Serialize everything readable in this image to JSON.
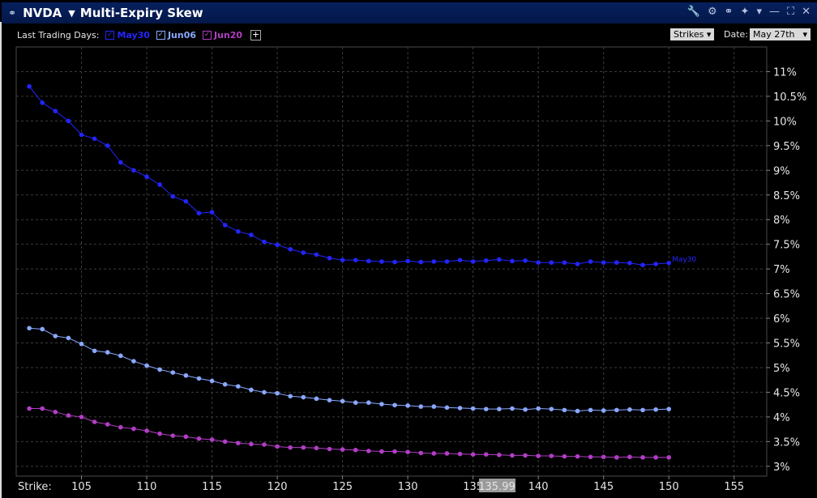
{
  "header": {
    "symbol": "NVDA",
    "title": "Multi-Expiry Skew"
  },
  "toolbar": {
    "last_days_label": "Last Trading Days:",
    "expiries": [
      {
        "label": "May30",
        "color": "#2424ff"
      },
      {
        "label": "Jun06",
        "color": "#8aa8ff"
      },
      {
        "label": "Jun20",
        "color": "#b13ec4"
      }
    ],
    "strikes_label": "Strikes",
    "date_label": "Date:",
    "date_value": "May 27th"
  },
  "chart_data": {
    "type": "line",
    "xlabel": "Strike:",
    "xlim": [
      100,
      157.5
    ],
    "ylim": [
      2.8,
      11.5
    ],
    "x_ticks": [
      105,
      110,
      115,
      120,
      125,
      130,
      135,
      140,
      145,
      150,
      155
    ],
    "y_ticks": [
      3,
      3.5,
      4,
      4.5,
      5,
      5.5,
      6,
      6.5,
      7,
      7.5,
      8,
      8.5,
      9,
      9.5,
      10,
      10.5,
      11
    ],
    "y_tick_format": "%",
    "grid": true,
    "current_price": "135.99",
    "x": [
      101,
      102,
      103,
      104,
      105,
      106,
      107,
      108,
      109,
      110,
      111,
      112,
      113,
      114,
      115,
      116,
      117,
      118,
      119,
      120,
      121,
      122,
      123,
      124,
      125,
      126,
      127,
      128,
      129,
      130,
      131,
      132,
      133,
      134,
      135,
      136,
      137,
      138,
      139,
      140,
      141,
      142,
      143,
      144,
      145,
      146,
      147,
      148,
      149,
      150
    ],
    "series": [
      {
        "name": "May30",
        "color": "#2424ff",
        "end_label": "May30",
        "values": [
          10.7,
          10.37,
          10.2,
          10.0,
          9.72,
          9.64,
          9.5,
          9.16,
          9.0,
          8.87,
          8.71,
          8.47,
          8.37,
          8.13,
          8.15,
          7.89,
          7.76,
          7.69,
          7.55,
          7.49,
          7.4,
          7.33,
          7.29,
          7.22,
          7.18,
          7.18,
          7.16,
          7.15,
          7.14,
          7.16,
          7.14,
          7.15,
          7.15,
          7.18,
          7.15,
          7.17,
          7.19,
          7.16,
          7.17,
          7.13,
          7.13,
          7.13,
          7.1,
          7.15,
          7.13,
          7.13,
          7.12,
          7.08,
          7.1,
          7.12
        ]
      },
      {
        "name": "Jun06",
        "color": "#8aa8ff",
        "values": [
          5.8,
          5.78,
          5.64,
          5.6,
          5.48,
          5.34,
          5.31,
          5.24,
          5.13,
          5.04,
          4.96,
          4.9,
          4.84,
          4.78,
          4.73,
          4.66,
          4.62,
          4.55,
          4.5,
          4.48,
          4.42,
          4.4,
          4.37,
          4.34,
          4.32,
          4.29,
          4.29,
          4.26,
          4.24,
          4.23,
          4.21,
          4.21,
          4.19,
          4.18,
          4.17,
          4.16,
          4.16,
          4.17,
          4.15,
          4.17,
          4.16,
          4.14,
          4.12,
          4.14,
          4.13,
          4.14,
          4.15,
          4.14,
          4.15,
          4.16
        ]
      },
      {
        "name": "Jun20",
        "color": "#b13ec4",
        "values": [
          4.17,
          4.17,
          4.1,
          4.03,
          4.0,
          3.9,
          3.85,
          3.79,
          3.76,
          3.72,
          3.66,
          3.62,
          3.6,
          3.56,
          3.54,
          3.5,
          3.47,
          3.45,
          3.44,
          3.4,
          3.38,
          3.38,
          3.37,
          3.35,
          3.34,
          3.33,
          3.31,
          3.3,
          3.3,
          3.29,
          3.27,
          3.26,
          3.26,
          3.25,
          3.24,
          3.24,
          3.23,
          3.22,
          3.22,
          3.21,
          3.21,
          3.2,
          3.2,
          3.19,
          3.19,
          3.18,
          3.19,
          3.18,
          3.18,
          3.18
        ]
      }
    ]
  }
}
